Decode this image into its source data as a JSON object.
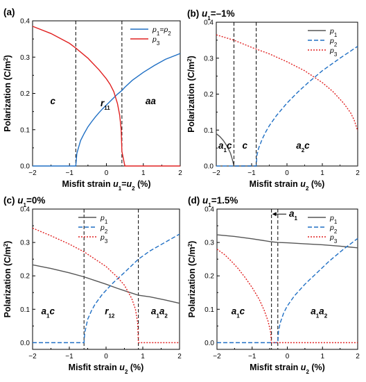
{
  "chart_data": [
    {
      "id": "a",
      "type": "line",
      "title_parts": [
        {
          "t": "(a)"
        }
      ],
      "xlabel_parts": [
        {
          "t": "Misfit strain "
        },
        {
          "t": "u",
          "i": true
        },
        {
          "t": "1",
          "sub": true
        },
        {
          "t": "="
        },
        {
          "t": "u",
          "i": true
        },
        {
          "t": "2",
          "sub": true
        },
        {
          "t": " (%)"
        }
      ],
      "ylabel_parts": [
        {
          "t": "Polarization (C/m"
        },
        {
          "t": "2",
          "sup": true
        },
        {
          "t": ")"
        }
      ],
      "xlim": [
        -2,
        2
      ],
      "ylim": [
        0,
        0.4
      ],
      "xticks": [
        -2,
        -1,
        0,
        1,
        2
      ],
      "xtick_labels": [
        "−2",
        "−1",
        "0",
        "1",
        "2"
      ],
      "yticks": [
        0,
        0.1,
        0.2,
        0.3,
        0.4
      ],
      "ytick_labels": [
        "0.0",
        "0.1",
        "0.2",
        "0.3",
        "0.4"
      ],
      "vlines": [
        -0.83,
        0.42
      ],
      "series": [
        {
          "name": "p1=p2",
          "name_parts": [
            {
              "t": "p",
              "i": true
            },
            {
              "t": "1",
              "sub": true
            },
            {
              "t": "="
            },
            {
              "t": "p",
              "i": true
            },
            {
              "t": "2",
              "sub": true
            }
          ],
          "color": "#1f6fc4",
          "dash": "solid",
          "x": [
            -2,
            -1.5,
            -0.83,
            -0.8,
            -0.7,
            -0.6,
            -0.5,
            -0.4,
            -0.3,
            -0.2,
            -0.1,
            0,
            0.1,
            0.2,
            0.3,
            0.42,
            0.5,
            0.7,
            1.0,
            1.3,
            1.6,
            2.0
          ],
          "y": [
            0,
            0,
            0,
            0.035,
            0.07,
            0.09,
            0.108,
            0.122,
            0.135,
            0.147,
            0.158,
            0.168,
            0.178,
            0.188,
            0.198,
            0.208,
            0.217,
            0.236,
            0.258,
            0.277,
            0.294,
            0.31
          ]
        },
        {
          "name": "p3",
          "name_parts": [
            {
              "t": "p",
              "i": true
            },
            {
              "t": "3",
              "sub": true
            }
          ],
          "color": "#e02020",
          "dash": "solid",
          "x": [
            -2,
            -1.5,
            -1.0,
            -0.83,
            -0.5,
            -0.2,
            0,
            0.1,
            0.2,
            0.3,
            0.36,
            0.4,
            0.42,
            0.5,
            1.0,
            1.5,
            2.0
          ],
          "y": [
            0.385,
            0.365,
            0.338,
            0.325,
            0.297,
            0.265,
            0.24,
            0.225,
            0.205,
            0.172,
            0.14,
            0.1,
            0.04,
            0,
            0,
            0,
            0
          ]
        }
      ],
      "regions": [
        {
          "x": -1.45,
          "y": 0.17,
          "parts": [
            {
              "t": "c",
              "i": true
            }
          ]
        },
        {
          "x": -0.03,
          "y": 0.165,
          "parts": [
            {
              "t": "r",
              "i": true
            },
            {
              "t": "11",
              "sub": true
            }
          ]
        },
        {
          "x": 1.2,
          "y": 0.17,
          "parts": [
            {
              "t": "aa",
              "i": true
            }
          ]
        }
      ],
      "legend": {
        "position": "top-right"
      }
    },
    {
      "id": "b",
      "type": "line",
      "title_parts": [
        {
          "t": "(b) "
        },
        {
          "t": "u",
          "i": true
        },
        {
          "t": "1",
          "sub": true
        },
        {
          "t": "=–1%"
        }
      ],
      "xlabel_parts": [
        {
          "t": "Misfit strain "
        },
        {
          "t": "u",
          "i": true
        },
        {
          "t": "2",
          "sub": true
        },
        {
          "t": " (%)"
        }
      ],
      "ylabel_parts": [
        {
          "t": "Polarization (C/m"
        },
        {
          "t": "2",
          "sup": true
        },
        {
          "t": ")"
        }
      ],
      "xlim": [
        -2,
        2
      ],
      "ylim": [
        0,
        0.4
      ],
      "xticks": [
        -2,
        -1,
        0,
        1,
        2
      ],
      "xtick_labels": [
        "−2",
        "−1",
        "0",
        "1",
        "2"
      ],
      "yticks": [
        0,
        0.1,
        0.2,
        0.3,
        0.4
      ],
      "ytick_labels": [
        "0.0",
        "0.1",
        "0.2",
        "0.3",
        "0.4"
      ],
      "vlines": [
        -1.5,
        -0.87
      ],
      "series": [
        {
          "name": "p1",
          "name_parts": [
            {
              "t": "p",
              "i": true
            },
            {
              "t": "1",
              "sub": true
            }
          ],
          "color": "#555555",
          "dash": "solid",
          "x": [
            -2,
            -1.9,
            -1.8,
            -1.7,
            -1.6,
            -1.55,
            -1.5,
            -1.0,
            0,
            1.0,
            2.0
          ],
          "y": [
            0.09,
            0.082,
            0.071,
            0.056,
            0.036,
            0.02,
            0,
            0,
            0,
            0,
            0
          ]
        },
        {
          "name": "p2",
          "name_parts": [
            {
              "t": "p",
              "i": true
            },
            {
              "t": "2",
              "sub": true
            }
          ],
          "color": "#1f6fc4",
          "dash": "dashed",
          "x": [
            -2,
            -1.5,
            -0.87,
            -0.85,
            -0.8,
            -0.7,
            -0.6,
            -0.5,
            -0.3,
            0,
            0.3,
            0.6,
            1.0,
            1.5,
            2.0
          ],
          "y": [
            0,
            0,
            0,
            0.03,
            0.05,
            0.075,
            0.095,
            0.112,
            0.14,
            0.175,
            0.205,
            0.232,
            0.265,
            0.3,
            0.333
          ]
        },
        {
          "name": "p3",
          "name_parts": [
            {
              "t": "p",
              "i": true
            },
            {
              "t": "3",
              "sub": true
            }
          ],
          "color": "#e02020",
          "dash": "dotted",
          "x": [
            -2,
            -1.5,
            -1.0,
            -0.5,
            0,
            0.5,
            1.0,
            1.3,
            1.6,
            1.8,
            1.9,
            2.0
          ],
          "y": [
            0.365,
            0.35,
            0.33,
            0.312,
            0.29,
            0.265,
            0.232,
            0.207,
            0.175,
            0.148,
            0.128,
            0.098
          ]
        }
      ],
      "regions": [
        {
          "x": -1.75,
          "y": 0.048,
          "parts": [
            {
              "t": "a",
              "i": true
            },
            {
              "t": "1",
              "sub": true
            },
            {
              "t": "c",
              "i": true
            }
          ]
        },
        {
          "x": -1.19,
          "y": 0.048,
          "parts": [
            {
              "t": "c",
              "i": true
            }
          ]
        },
        {
          "x": 0.45,
          "y": 0.048,
          "parts": [
            {
              "t": "a",
              "i": true
            },
            {
              "t": "2",
              "sub": true
            },
            {
              "t": "c",
              "i": true
            }
          ]
        }
      ],
      "legend": {
        "position": "top-right"
      }
    },
    {
      "id": "c",
      "type": "line",
      "title_parts": [
        {
          "t": "(c) "
        },
        {
          "t": "u",
          "i": true
        },
        {
          "t": "1",
          "sub": true
        },
        {
          "t": "=0%"
        }
      ],
      "xlabel_parts": [
        {
          "t": "Misfit strain "
        },
        {
          "t": "u",
          "i": true
        },
        {
          "t": "2",
          "sub": true
        },
        {
          "t": " (%)"
        }
      ],
      "ylabel_parts": [
        {
          "t": "Polarization (C/m"
        },
        {
          "t": "2",
          "sup": true
        },
        {
          "t": ")"
        }
      ],
      "xlim": [
        -2,
        2
      ],
      "ylim": [
        -0.02,
        0.4
      ],
      "xticks": [
        -2,
        -1,
        0,
        1,
        2
      ],
      "xtick_labels": [
        "−2",
        "−1",
        "0",
        "1",
        "2"
      ],
      "yticks": [
        0,
        0.1,
        0.2,
        0.3,
        0.4
      ],
      "ytick_labels": [
        "0.0",
        "0.1",
        "0.2",
        "0.3",
        "0.4"
      ],
      "vlines": [
        -0.6,
        0.88
      ],
      "series": [
        {
          "name": "p1",
          "name_parts": [
            {
              "t": "p",
              "i": true
            },
            {
              "t": "1",
              "sub": true
            }
          ],
          "color": "#555555",
          "dash": "solid",
          "x": [
            -2,
            -1.5,
            -1.0,
            -0.6,
            -0.3,
            0,
            0.3,
            0.6,
            0.88,
            1.2,
            1.6,
            2.0
          ],
          "y": [
            0.233,
            0.222,
            0.209,
            0.197,
            0.186,
            0.175,
            0.163,
            0.152,
            0.142,
            0.137,
            0.128,
            0.118
          ]
        },
        {
          "name": "p2",
          "name_parts": [
            {
              "t": "p",
              "i": true
            },
            {
              "t": "2",
              "sub": true
            }
          ],
          "color": "#1f6fc4",
          "dash": "dashed",
          "x": [
            -2,
            -1.0,
            -0.6,
            -0.58,
            -0.5,
            -0.4,
            -0.3,
            -0.1,
            0.2,
            0.5,
            0.88,
            1.2,
            1.6,
            2.0
          ],
          "y": [
            0,
            0,
            0,
            0.03,
            0.07,
            0.095,
            0.115,
            0.145,
            0.18,
            0.21,
            0.25,
            0.275,
            0.3,
            0.325
          ]
        },
        {
          "name": "p3",
          "name_parts": [
            {
              "t": "p",
              "i": true
            },
            {
              "t": "3",
              "sub": true
            }
          ],
          "color": "#e02020",
          "dash": "dotted",
          "x": [
            -2,
            -1.5,
            -1.0,
            -0.6,
            -0.3,
            0,
            0.3,
            0.5,
            0.7,
            0.8,
            0.86,
            0.88,
            1.0,
            1.5,
            2.0
          ],
          "y": [
            0.343,
            0.32,
            0.295,
            0.272,
            0.25,
            0.228,
            0.197,
            0.172,
            0.132,
            0.1,
            0.06,
            0,
            0,
            0,
            0
          ]
        }
      ],
      "regions": [
        {
          "x": -1.58,
          "y": 0.085,
          "parts": [
            {
              "t": "a",
              "i": true
            },
            {
              "t": "1",
              "sub": true
            },
            {
              "t": "c",
              "i": true
            }
          ]
        },
        {
          "x": 0.1,
          "y": 0.085,
          "parts": [
            {
              "t": "r",
              "i": true
            },
            {
              "t": "12",
              "sub": true
            }
          ]
        },
        {
          "x": 1.45,
          "y": 0.085,
          "parts": [
            {
              "t": "a",
              "i": true
            },
            {
              "t": "1",
              "sub": true
            },
            {
              "t": "a",
              "i": true
            },
            {
              "t": "2",
              "sub": true
            }
          ]
        }
      ],
      "legend": {
        "position": "top-center"
      }
    },
    {
      "id": "d",
      "type": "line",
      "title_parts": [
        {
          "t": "(d) "
        },
        {
          "t": "u",
          "i": true
        },
        {
          "t": "1",
          "sub": true
        },
        {
          "t": "=1.5%"
        }
      ],
      "xlabel_parts": [
        {
          "t": "Misfit strain "
        },
        {
          "t": "u",
          "i": true
        },
        {
          "t": "2",
          "sub": true
        },
        {
          "t": " (%)"
        }
      ],
      "ylabel_parts": [
        {
          "t": "Polarization (C/m"
        },
        {
          "t": "2",
          "sup": true
        },
        {
          "t": ")"
        }
      ],
      "xlim": [
        -2,
        2
      ],
      "ylim": [
        -0.02,
        0.4
      ],
      "xticks": [
        -2,
        -1,
        0,
        1,
        2
      ],
      "xtick_labels": [
        "−2",
        "−1",
        "0",
        "1",
        "2"
      ],
      "yticks": [
        0,
        0.1,
        0.2,
        0.3,
        0.4
      ],
      "ytick_labels": [
        "0.0",
        "0.1",
        "0.2",
        "0.3",
        "0.4"
      ],
      "vlines": [
        -0.45,
        -0.27
      ],
      "series": [
        {
          "name": "p1",
          "name_parts": [
            {
              "t": "p",
              "i": true
            },
            {
              "t": "1",
              "sub": true
            }
          ],
          "color": "#555555",
          "dash": "solid",
          "x": [
            -2,
            -1.5,
            -1.0,
            -0.45,
            -0.27,
            0,
            0.5,
            1.0,
            1.5,
            2.0
          ],
          "y": [
            0.323,
            0.318,
            0.311,
            0.302,
            0.3,
            0.299,
            0.296,
            0.293,
            0.289,
            0.284
          ]
        },
        {
          "name": "p2",
          "name_parts": [
            {
              "t": "p",
              "i": true
            },
            {
              "t": "2",
              "sub": true
            }
          ],
          "color": "#1f6fc4",
          "dash": "dashed",
          "x": [
            -2,
            -1.0,
            -0.27,
            -0.25,
            -0.2,
            -0.1,
            0,
            0.2,
            0.5,
            0.8,
            1.2,
            1.6,
            2.0
          ],
          "y": [
            0,
            0,
            0,
            0.035,
            0.06,
            0.09,
            0.11,
            0.14,
            0.175,
            0.205,
            0.245,
            0.28,
            0.312
          ]
        },
        {
          "name": "p3",
          "name_parts": [
            {
              "t": "p",
              "i": true
            },
            {
              "t": "3",
              "sub": true
            }
          ],
          "color": "#e02020",
          "dash": "dotted",
          "x": [
            -2,
            -1.8,
            -1.6,
            -1.4,
            -1.2,
            -1.0,
            -0.8,
            -0.65,
            -0.55,
            -0.48,
            -0.45,
            -0.3,
            0,
            1.0,
            2.0
          ],
          "y": [
            0.28,
            0.265,
            0.245,
            0.222,
            0.195,
            0.165,
            0.13,
            0.095,
            0.065,
            0.035,
            0,
            0,
            0,
            0,
            0
          ]
        }
      ],
      "regions": [
        {
          "x": -1.4,
          "y": 0.085,
          "parts": [
            {
              "t": "a",
              "i": true
            },
            {
              "t": "1",
              "sub": true
            },
            {
              "t": "c",
              "i": true
            }
          ]
        },
        {
          "x": 0.9,
          "y": 0.085,
          "parts": [
            {
              "t": "a",
              "i": true
            },
            {
              "t": "1",
              "sub": true
            },
            {
              "t": "a",
              "i": true
            },
            {
              "t": "2",
              "sub": true
            }
          ]
        }
      ],
      "annotation": {
        "parts": [
          {
            "t": "a",
            "i": true
          },
          {
            "t": "1",
            "sub": true
          }
        ],
        "x": -0.45,
        "y": 0.385,
        "text_x": 0.05
      },
      "legend": {
        "position": "top-right"
      }
    }
  ]
}
